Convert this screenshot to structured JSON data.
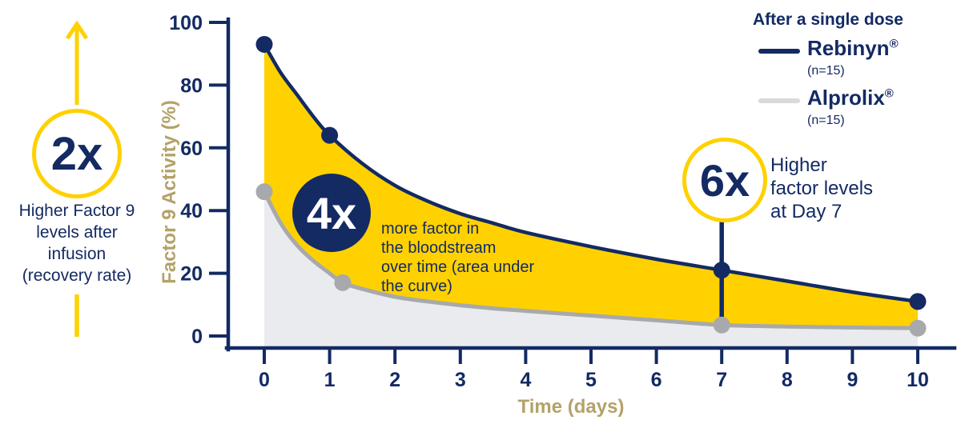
{
  "theme": {
    "navy": "#132a63",
    "yellow": "#ffd100",
    "tan": "#b3a269",
    "gray_line": "#a7a9ac",
    "gray_fill": "#e9ebee",
    "white": "#ffffff"
  },
  "left_annotation": {
    "multiplier": "2x",
    "caption": "Higher Factor 9\nlevels after\ninfusion\n(recovery rate)"
  },
  "auc_annotation": {
    "multiplier": "4x",
    "caption": "more factor in\nthe bloodstream\nover time (area under\nthe curve)"
  },
  "day7_annotation": {
    "multiplier": "6x",
    "caption": "Higher\nfactor levels\nat Day 7",
    "day": 7
  },
  "legend": {
    "title": "After a single dose",
    "items": [
      {
        "name": "Rebinyn",
        "registered": "®",
        "n": "(n=15)",
        "color": "#132a63"
      },
      {
        "name": "Alprolix",
        "registered": "®",
        "n": "(n=15)",
        "color": "#d9dadc"
      }
    ]
  },
  "chart_data": {
    "type": "line",
    "title": "After a single dose",
    "xlabel": "Time (days)",
    "ylabel": "Factor 9 Activity (%)",
    "xlim": [
      0,
      10
    ],
    "ylim": [
      0,
      100
    ],
    "x_ticks": [
      0,
      1,
      2,
      3,
      4,
      5,
      6,
      7,
      8,
      9,
      10
    ],
    "y_ticks": [
      0,
      20,
      40,
      60,
      80,
      100
    ],
    "grid": false,
    "legend_position": "top-right",
    "series": [
      {
        "name": "Rebinyn",
        "color": "#132a63",
        "fill_between_next_series": "#ffd100",
        "x": [
          0,
          0.25,
          0.5,
          0.75,
          1,
          1.5,
          2,
          2.5,
          3,
          3.5,
          4,
          5,
          6,
          7,
          8,
          9,
          10
        ],
        "values": [
          93,
          84,
          77,
          70,
          64,
          55,
          48,
          43,
          39,
          36,
          33,
          28.5,
          24.5,
          21,
          17.5,
          14,
          11
        ],
        "markers": {
          "x": [
            0,
            1,
            7,
            10
          ],
          "values": [
            93,
            64,
            21,
            11
          ]
        }
      },
      {
        "name": "Alprolix",
        "color": "#a7a9ac",
        "fill_to_baseline": "#e9ebee",
        "x": [
          0,
          0.25,
          0.5,
          0.75,
          1,
          1.2,
          1.5,
          2,
          2.5,
          3,
          3.5,
          4,
          5,
          6,
          7,
          8,
          9,
          10
        ],
        "values": [
          46,
          36,
          29,
          24,
          20,
          17,
          15,
          12.5,
          11,
          9.8,
          8.8,
          8,
          6.5,
          5,
          3.5,
          3,
          2.7,
          2.5
        ],
        "markers": {
          "x": [
            0,
            1.2,
            7,
            10
          ],
          "values": [
            46,
            17,
            3.5,
            2.5
          ]
        }
      }
    ],
    "annotations": [
      {
        "label": "2x",
        "text": "Higher Factor 9 levels after infusion (recovery rate)"
      },
      {
        "label": "4x",
        "text": "more factor in the bloodstream over time (area under the curve)"
      },
      {
        "label": "6x",
        "text": "Higher factor levels at Day 7",
        "at_day": 7
      }
    ]
  }
}
